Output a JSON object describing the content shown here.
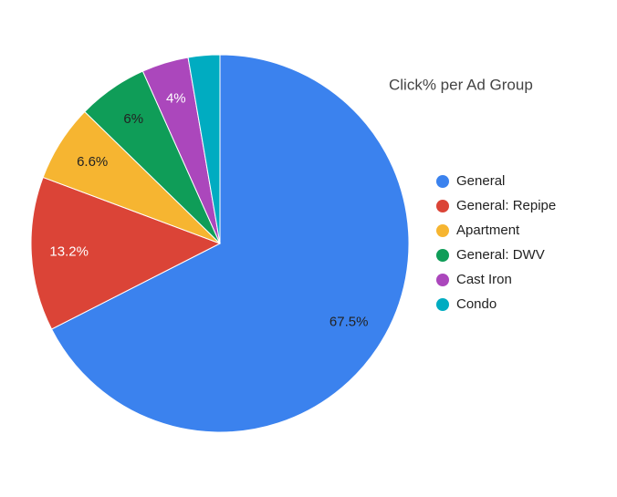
{
  "chart_data": {
    "type": "pie",
    "title": "Click% per Ad Group",
    "categories": [
      "General",
      "General: Repipe",
      "Apartment",
      "General: DWV",
      "Cast Iron",
      "Condo"
    ],
    "values": [
      67.5,
      13.2,
      6.6,
      6,
      4,
      2.7
    ],
    "value_labels": [
      "67.5%",
      "13.2%",
      "6.6%",
      "6%",
      "4%",
      null
    ],
    "colors": [
      "#3b82ee",
      "#db4437",
      "#f6b531",
      "#0f9d58",
      "#ab47bc",
      "#00acc1"
    ],
    "legend": "right"
  }
}
